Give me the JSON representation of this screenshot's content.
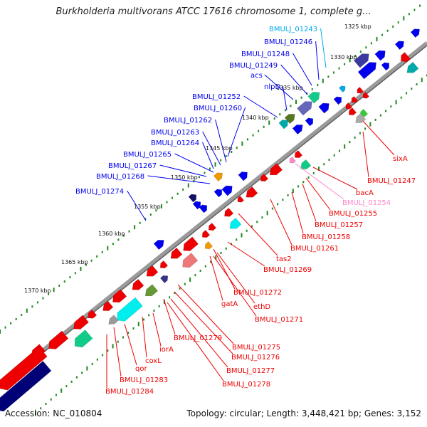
{
  "title": "Burkholderia multivorans ATCC 17616 chromosome 1, complete g...",
  "footer": {
    "accession": "Accession: NC_010804",
    "summary": "Topology: circular; Length: 3,448,421 bp; Genes: 3,152"
  },
  "colors": {
    "forward_strand": "#0000ee",
    "reverse_strand": "#ee0000",
    "dim_forward": "#00aaee",
    "dim_reverse": "#ff88cc",
    "backbone": "#888888",
    "ticks": "#228822"
  },
  "scale_labels": [
    "1325 kbp",
    "1330 kbp",
    "1335 kbp",
    "1340 kbp",
    "1345 kbp",
    "1350 kbp",
    "1355 kbp",
    "1360 kbp",
    "1365 kbp",
    "1370 kbp"
  ],
  "forward_labels": [
    "BMULJ_01243",
    "BMULJ_01246",
    "BMULJ_01248",
    "BMULJ_01249",
    "acs",
    "nlpD",
    "BMULJ_01252",
    "BMULJ_01260",
    "BMULJ_01262",
    "BMULJ_01263",
    "BMULJ_01264",
    "BMULJ_01265",
    "BMULJ_01267",
    "BMULJ_01268",
    "BMULJ_01274"
  ],
  "reverse_labels": [
    "sixA",
    "BMULJ_01247",
    "bacA",
    "BMULJ_01254",
    "BMULJ_01255",
    "BMULJ_01257",
    "BMULJ_01258",
    "BMULJ_01261",
    "tas2",
    "BMULJ_01269",
    "BMULJ_01272",
    "gatA",
    "ethD",
    "BMULJ_01271",
    "BMULJ_01279",
    "BMULJ_01275",
    "BMULJ_01276",
    "BMULJ_01277",
    "BMULJ_01278",
    "iorA",
    "coxL",
    "qor",
    "BMULJ_01283",
    "BMULJ_01284"
  ]
}
